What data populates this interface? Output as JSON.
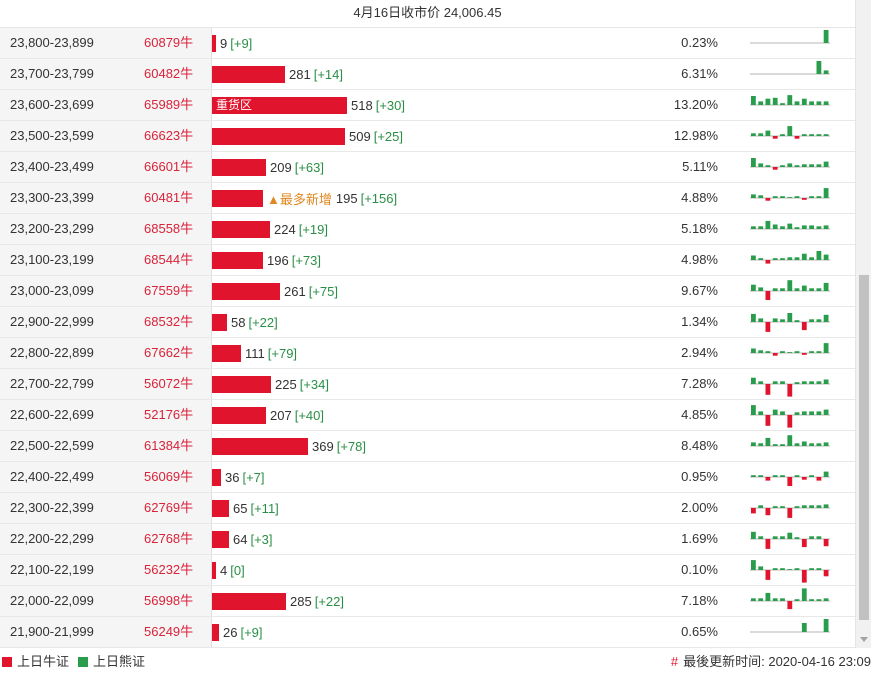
{
  "header": {
    "title": "4月16日收市价 24,006.45"
  },
  "colors": {
    "bull": "#e0142d",
    "bear": "#2a9d4c",
    "delta": "#2a8f46",
    "note": "#e0871f"
  },
  "rows": [
    {
      "range": "23,800-23,899",
      "code": "60879牛",
      "bar": 0.9,
      "label": "",
      "count": "9",
      "delta": "[+9]",
      "pct": "0.23%",
      "spark": [
        0,
        0,
        0,
        0,
        0,
        0,
        0,
        0,
        0,
        0,
        4
      ]
    },
    {
      "range": "23,700-23,799",
      "code": "60482牛",
      "bar": 28.1,
      "label": "",
      "count": "281",
      "delta": "[+14]",
      "pct": "6.31%",
      "spark": [
        0,
        0,
        0,
        0,
        0,
        0,
        0,
        0,
        0,
        5,
        0.4
      ]
    },
    {
      "range": "23,600-23,699",
      "code": "65989牛",
      "bar": 51.8,
      "label": "重货区",
      "count": "518",
      "delta": "[+30]",
      "pct": "13.20%",
      "spark": [
        1,
        0.4,
        0.7,
        0.8,
        0.2,
        1.1,
        0.4,
        0.7,
        0.4,
        0.4,
        0.4
      ]
    },
    {
      "range": "23,500-23,599",
      "code": "66623牛",
      "bar": 50.9,
      "label": "",
      "count": "509",
      "delta": "[+25]",
      "pct": "12.98%",
      "spark": [
        0.3,
        0.3,
        0.6,
        -0.3,
        0.2,
        1.1,
        -0.3,
        0.2,
        0.2,
        0.2,
        0.2
      ]
    },
    {
      "range": "23,400-23,499",
      "code": "66601牛",
      "bar": 20.9,
      "label": "",
      "count": "209",
      "delta": "[+63]",
      "pct": "5.11%",
      "spark": [
        1,
        0.4,
        0.2,
        -0.3,
        0.2,
        0.4,
        0.2,
        0.3,
        0.3,
        0.3,
        0.6
      ]
    },
    {
      "range": "23,300-23,399",
      "code": "60481牛",
      "bar": 19.5,
      "label": "",
      "note": "▲最多新增",
      "count": "195",
      "delta": "[+156]",
      "pct": "4.88%",
      "spark": [
        0.4,
        0.3,
        -0.3,
        0.2,
        0.2,
        0.1,
        0.2,
        -0.2,
        0.2,
        0.2,
        1.1
      ]
    },
    {
      "range": "23,200-23,299",
      "code": "68558牛",
      "bar": 22.4,
      "label": "",
      "count": "224",
      "delta": "[+19]",
      "pct": "5.18%",
      "spark": [
        0.3,
        0.3,
        0.9,
        0.5,
        0.3,
        0.6,
        0.2,
        0.4,
        0.4,
        0.3,
        0.4
      ]
    },
    {
      "range": "23,100-23,199",
      "code": "68544牛",
      "bar": 19.6,
      "label": "",
      "count": "196",
      "delta": "[+73]",
      "pct": "4.98%",
      "spark": [
        0.5,
        0.2,
        -0.4,
        0.2,
        0.2,
        0.3,
        0.3,
        0.7,
        0.3,
        1,
        0.6
      ]
    },
    {
      "range": "23,000-23,099",
      "code": "67559牛",
      "bar": 26.1,
      "label": "",
      "count": "261",
      "delta": "[+75]",
      "pct": "9.67%",
      "spark": [
        0.7,
        0.4,
        -1,
        0.3,
        0.3,
        1.2,
        0.3,
        0.6,
        0.3,
        0.3,
        0.9
      ]
    },
    {
      "range": "22,900-22,999",
      "code": "68532牛",
      "bar": 5.8,
      "label": "",
      "count": "58",
      "delta": "[+22]",
      "pct": "1.34%",
      "spark": [
        0.9,
        0.4,
        -1.1,
        0.4,
        0.3,
        1,
        0.2,
        -0.9,
        0.3,
        0.3,
        0.8
      ]
    },
    {
      "range": "22,800-22,899",
      "code": "67662牛",
      "bar": 11.1,
      "label": "",
      "count": "111",
      "delta": "[+79]",
      "pct": "2.94%",
      "spark": [
        0.5,
        0.3,
        0.2,
        -0.3,
        0.2,
        0.1,
        0.2,
        -0.2,
        0.2,
        0.2,
        1.1
      ]
    },
    {
      "range": "22,700-22,799",
      "code": "56072牛",
      "bar": 22.5,
      "label": "",
      "count": "225",
      "delta": "[+34]",
      "pct": "7.28%",
      "spark": [
        0.7,
        0.3,
        -1.2,
        0.3,
        0.3,
        -1.4,
        0.2,
        0.3,
        0.3,
        0.3,
        0.5
      ]
    },
    {
      "range": "22,600-22,699",
      "code": "52176牛",
      "bar": 20.7,
      "label": "",
      "count": "207",
      "delta": "[+40]",
      "pct": "4.85%",
      "spark": [
        1.1,
        0.4,
        -1.2,
        0.6,
        0.4,
        -1.4,
        0.3,
        0.4,
        0.4,
        0.4,
        0.6
      ]
    },
    {
      "range": "22,500-22,599",
      "code": "61384牛",
      "bar": 36.9,
      "label": "",
      "count": "369",
      "delta": "[+78]",
      "pct": "8.48%",
      "spark": [
        0.4,
        0.3,
        0.9,
        0.2,
        0.2,
        1.2,
        0.3,
        0.5,
        0.3,
        0.3,
        0.4
      ]
    },
    {
      "range": "22,400-22,499",
      "code": "56069牛",
      "bar": 3.6,
      "label": "",
      "count": "36",
      "delta": "[+7]",
      "pct": "0.95%",
      "spark": [
        0.2,
        0.2,
        -0.4,
        0.2,
        0.2,
        -1,
        0.2,
        -0.3,
        0.2,
        -0.4,
        0.6
      ]
    },
    {
      "range": "22,300-22,399",
      "code": "62769牛",
      "bar": 6.5,
      "label": "",
      "count": "65",
      "delta": "[+11]",
      "pct": "2.00%",
      "spark": [
        -0.6,
        0.3,
        -0.8,
        0.2,
        0.2,
        -1.1,
        0.2,
        0.3,
        0.3,
        0.3,
        0.4
      ]
    },
    {
      "range": "22,200-22,299",
      "code": "62768牛",
      "bar": 6.4,
      "label": "",
      "count": "64",
      "delta": "[+3]",
      "pct": "1.69%",
      "spark": [
        0.8,
        0.3,
        -1.1,
        0.3,
        0.3,
        0.7,
        0.2,
        -0.9,
        0.3,
        0.3,
        -0.8
      ]
    },
    {
      "range": "22,100-22,199",
      "code": "56232牛",
      "bar": 0.4,
      "label": "",
      "count": "4",
      "delta": "[0]",
      "pct": "0.10%",
      "spark": [
        1.1,
        0.4,
        -1.1,
        0.2,
        0.2,
        0.1,
        0.2,
        -1.4,
        0.2,
        0.2,
        -0.7
      ]
    },
    {
      "range": "22,000-22,099",
      "code": "56998牛",
      "bar": 28.5,
      "label": "",
      "count": "285",
      "delta": "[+22]",
      "pct": "7.18%",
      "spark": [
        0.3,
        0.3,
        0.9,
        0.3,
        0.3,
        -0.9,
        0.2,
        1.4,
        0.2,
        0.2,
        0.3
      ]
    },
    {
      "range": "21,900-21,999",
      "code": "56249牛",
      "bar": 2.6,
      "label": "",
      "count": "26",
      "delta": "[+9]",
      "pct": "0.65%",
      "spark": [
        0,
        0,
        0,
        0,
        0,
        0,
        0,
        1,
        0,
        0,
        1.6
      ]
    }
  ],
  "legend": {
    "bull_label": "上日牛证",
    "bear_label": "上日熊证",
    "hash": "#",
    "updated_label": "最後更新时间: 2020-04-16 23:09"
  }
}
